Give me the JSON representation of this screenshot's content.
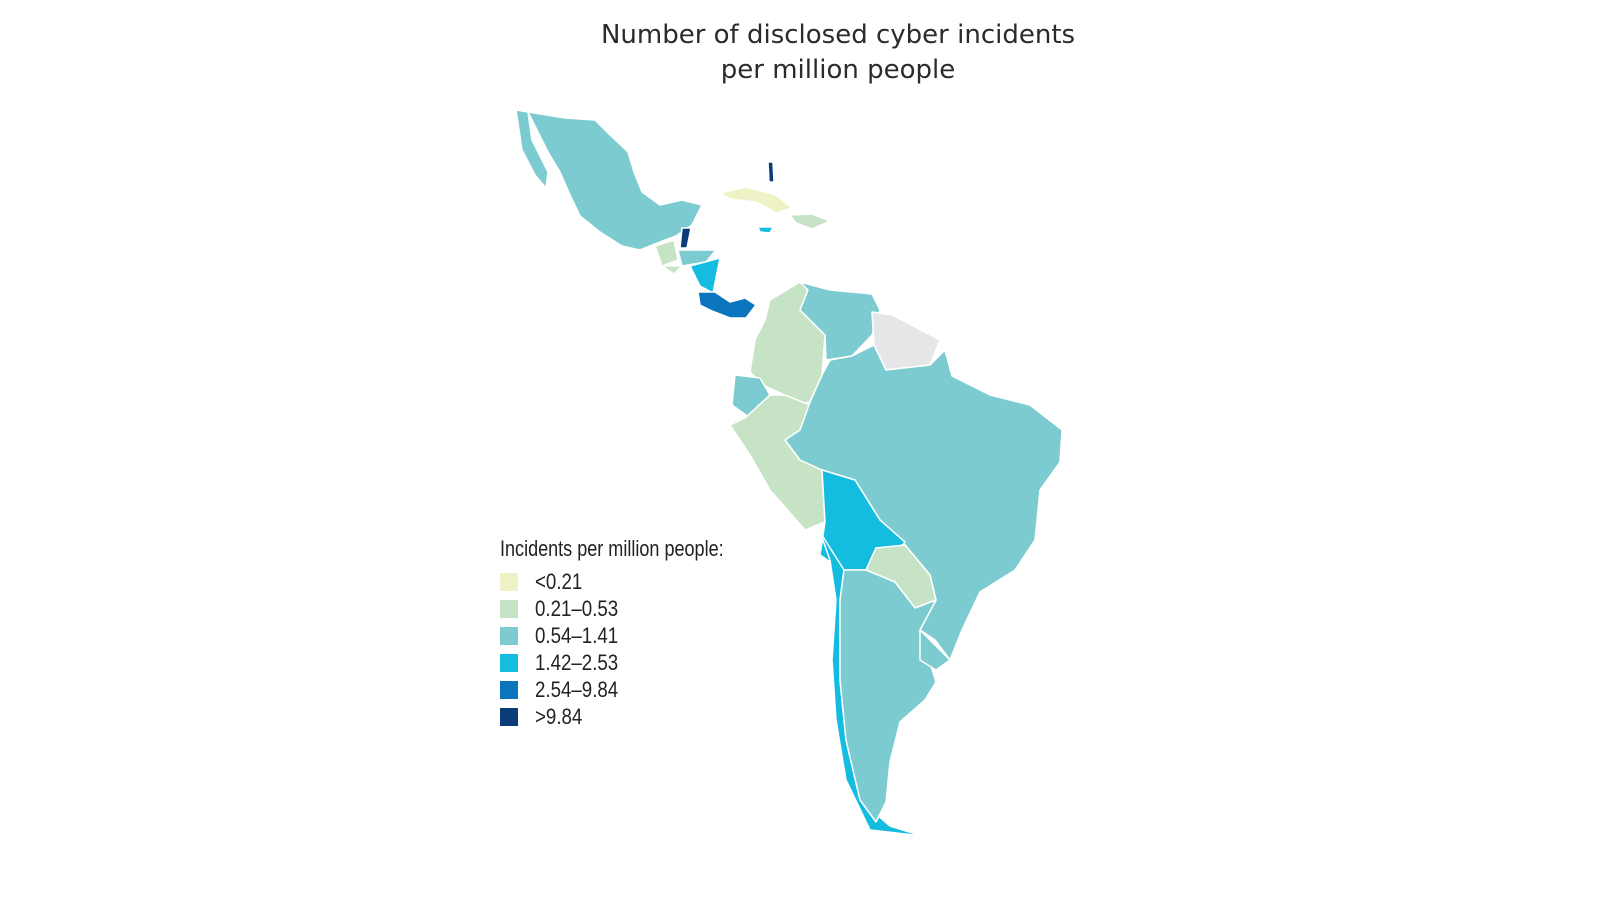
{
  "title": {
    "line1": "Number of disclosed cyber incidents",
    "line2": "per million people"
  },
  "legend": {
    "title": "Incidents per million people:",
    "items": [
      {
        "label": "<0.21",
        "color": "#eef2c4"
      },
      {
        "label": "0.21–0.53",
        "color": "#c6e3c6"
      },
      {
        "label": "0.54–1.41",
        "color": "#7ccbd1"
      },
      {
        "label": "1.42–2.53",
        "color": "#14bde0"
      },
      {
        "label": "2.54–9.84",
        "color": "#0a74bd"
      },
      {
        "label": ">9.84",
        "color": "#0b3c78"
      }
    ]
  },
  "no_data_color": "#e4e6e8",
  "regions": {
    "mexico": 2,
    "baja": 2,
    "guatemala": 1,
    "belize": 5,
    "honduras": 2,
    "el-salvador": 1,
    "nicaragua": 3,
    "costa-rica-panama": 4,
    "cuba": 0,
    "jamaica": 3,
    "hispaniola": 1,
    "bahamas": 5,
    "colombia": 1,
    "venezuela": 2,
    "guianas": -1,
    "ecuador": 2,
    "peru": 1,
    "brazil": 2,
    "bolivia": 3,
    "paraguay": 1,
    "chile": 3,
    "argentina": 2,
    "uruguay": 2
  }
}
